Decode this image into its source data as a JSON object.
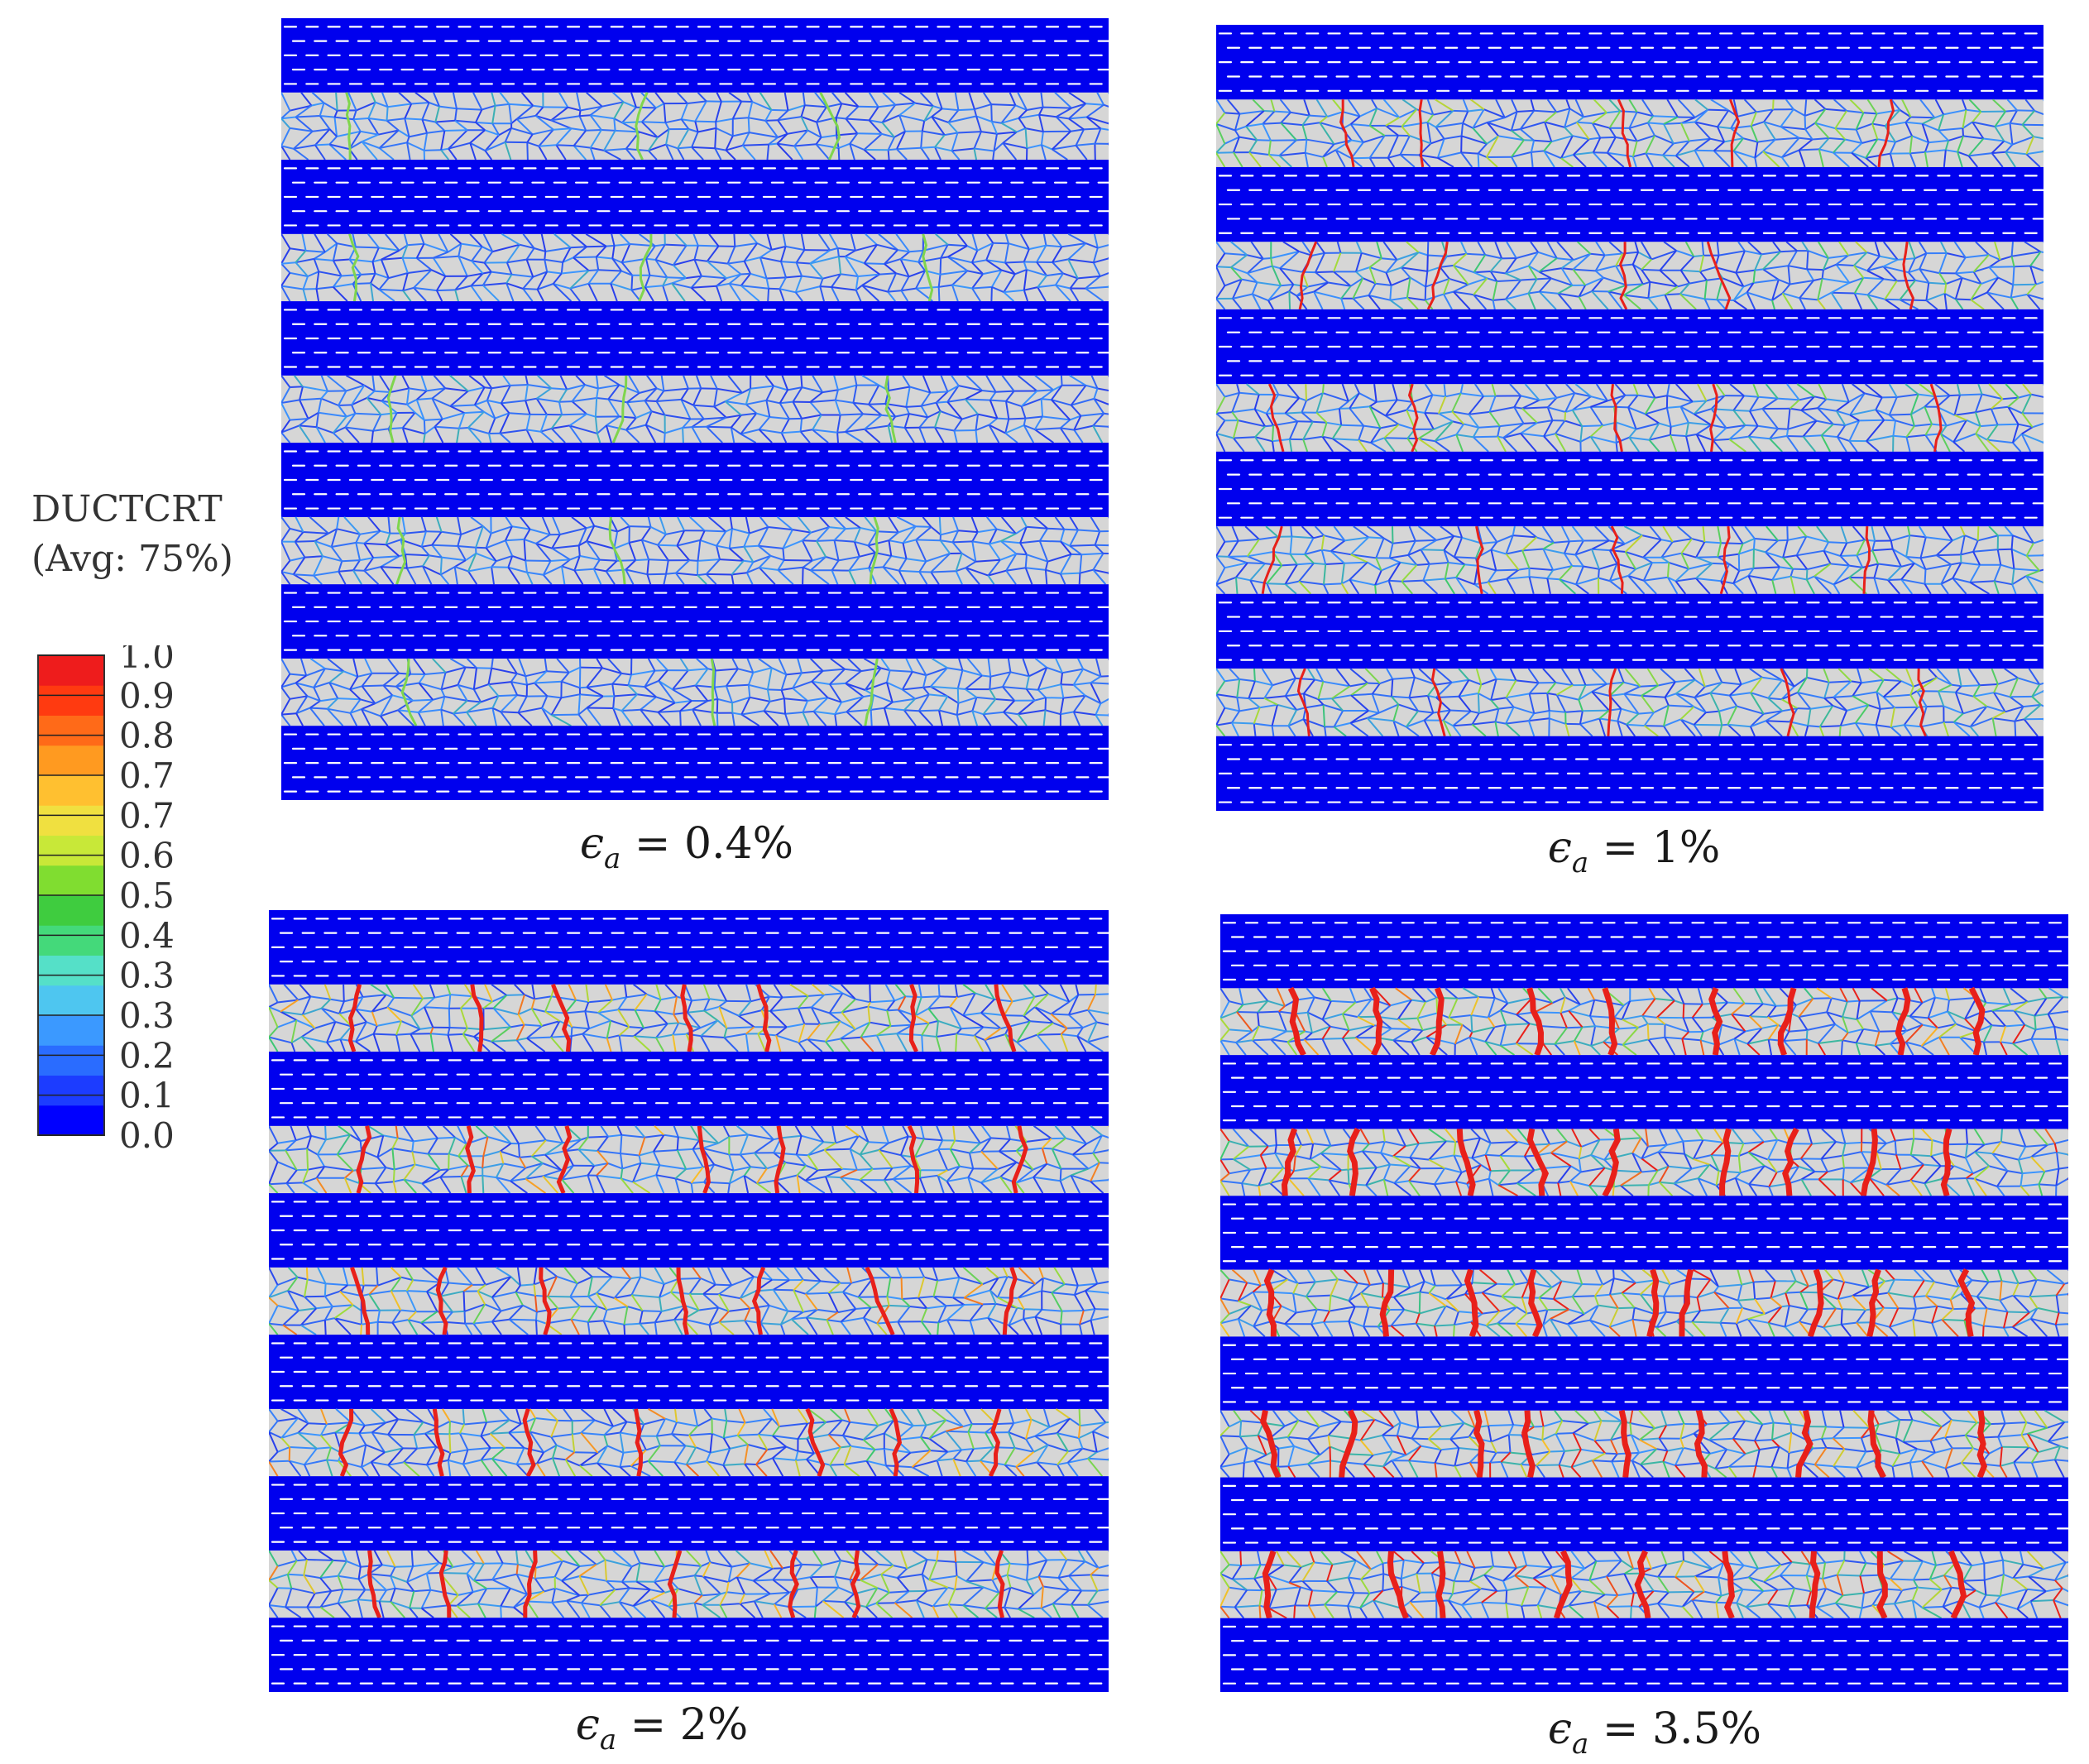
{
  "legend": {
    "variable": "DUCTCRT",
    "averaging": "(Avg: 75%)",
    "tick_labels": [
      "1.0",
      "0.9",
      "0.8",
      "0.7",
      "0.7",
      "0.6",
      "0.5",
      "0.4",
      "0.3",
      "0.3",
      "0.2",
      "0.1",
      "0.0"
    ],
    "colors": [
      "#0000ff",
      "#1c3cff",
      "#2a6cff",
      "#3b99ff",
      "#4ec6f0",
      "#55e0c8",
      "#44d97a",
      "#3fcc3f",
      "#80dd30",
      "#c8e838",
      "#f0e040",
      "#ffc030",
      "#ff9a20",
      "#ff6a18",
      "#ff3a10",
      "#ee1c1c"
    ]
  },
  "panels": [
    {
      "id": "a",
      "strain_label": "= 0.4%",
      "damage_level": 0.15
    },
    {
      "id": "b",
      "strain_label": "= 1%",
      "damage_level": 0.45
    },
    {
      "id": "c",
      "strain_label": "= 2%",
      "damage_level": 0.7
    },
    {
      "id": "d",
      "strain_label": "= 3.5%",
      "damage_level": 1.0
    }
  ],
  "symbol": {
    "main": "ϵ",
    "sub": "a"
  },
  "colors": {
    "fiber_band": "#0000ee",
    "matrix_bg": "#d6d6d6",
    "fiber_dash": "#ffffff",
    "crack": "#e8201a"
  }
}
